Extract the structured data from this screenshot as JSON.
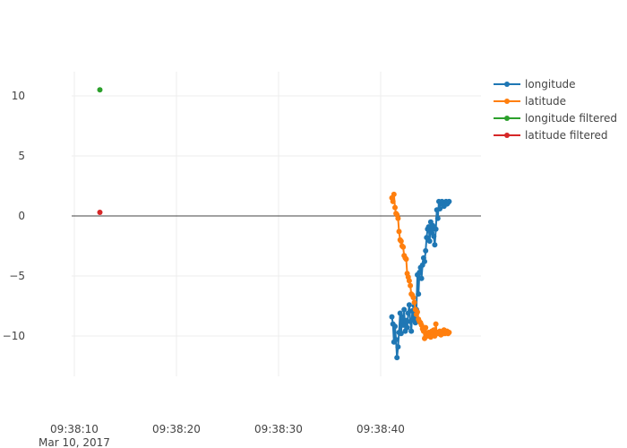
{
  "chart_data": {
    "type": "line",
    "title": "",
    "xlabel": "",
    "ylabel": "",
    "x_tick_labels": [
      "09:38:10",
      "09:38:20",
      "09:38:30",
      "09:38:40"
    ],
    "x_tick_values": [
      10,
      20,
      30,
      40
    ],
    "x_date_label": "Mar 10, 2017",
    "y_tick_labels": [
      "10",
      "5",
      "0",
      "−5",
      "−10"
    ],
    "y_tick_values": [
      10,
      5,
      0,
      -5,
      -10
    ],
    "xlim": [
      10,
      48
    ],
    "ylim": [
      -13.5,
      12.5
    ],
    "grid": true,
    "legend_position": "top-right",
    "series": [
      {
        "name": "longitude",
        "color": "#1f77b4",
        "x": [
          41.1,
          41.2,
          41.3,
          41.4,
          41.5,
          41.6,
          41.7,
          41.8,
          41.9,
          42.0,
          42.1,
          42.2,
          42.3,
          42.4,
          42.5,
          42.6,
          42.7,
          42.8,
          42.9,
          43.0,
          43.1,
          43.2,
          43.3,
          43.4,
          43.5,
          43.6,
          43.7,
          43.8,
          43.9,
          44.0,
          44.1,
          44.2,
          44.3,
          44.4,
          44.5,
          44.6,
          44.7,
          44.8,
          44.9,
          45.0,
          45.1,
          45.2,
          45.3,
          45.4,
          45.5,
          45.6,
          45.7,
          45.8,
          45.9,
          46.0,
          46.1,
          46.2,
          46.3,
          46.4,
          46.5,
          46.6,
          46.7
        ],
        "y": [
          -8.4,
          -9.0,
          -10.5,
          -9.2,
          -10.3,
          -11.8,
          -10.9,
          -9.7,
          -8.1,
          -9.8,
          -8.4,
          -9.1,
          -7.8,
          -9.6,
          -8.7,
          -9.3,
          -8.1,
          -7.4,
          -8.8,
          -9.6,
          -7.9,
          -8.6,
          -7.5,
          -8.9,
          -7.8,
          -4.9,
          -6.5,
          -4.7,
          -4.3,
          -5.2,
          -4.1,
          -3.5,
          -3.8,
          -2.9,
          -1.8,
          -1.1,
          -0.9,
          -2.1,
          -0.5,
          -1.4,
          -0.8,
          -1.7,
          -2.4,
          -1.1,
          0.5,
          -0.2,
          1.2,
          0.6,
          1.1,
          1.2,
          1.0,
          0.8,
          1.1,
          1.2,
          1.0,
          1.1,
          1.2
        ]
      },
      {
        "name": "latitude",
        "color": "#ff7f0e",
        "x": [
          41.1,
          41.2,
          41.3,
          41.4,
          41.5,
          41.6,
          41.7,
          41.8,
          41.9,
          42.0,
          42.1,
          42.2,
          42.3,
          42.4,
          42.5,
          42.6,
          42.7,
          42.8,
          42.9,
          43.0,
          43.1,
          43.2,
          43.3,
          43.4,
          43.5,
          43.6,
          43.7,
          43.8,
          43.9,
          44.0,
          44.1,
          44.2,
          44.3,
          44.4,
          44.5,
          44.6,
          44.7,
          44.8,
          44.9,
          45.0,
          45.1,
          45.2,
          45.3,
          45.4,
          45.5,
          45.6,
          45.7,
          45.8,
          45.9,
          46.0,
          46.1,
          46.2,
          46.3,
          46.4,
          46.5,
          46.6,
          46.7
        ],
        "y": [
          1.5,
          1.2,
          1.8,
          0.7,
          0.2,
          0.1,
          -0.2,
          -1.3,
          -2.0,
          -2.1,
          -2.5,
          -2.6,
          -3.3,
          -3.5,
          -3.6,
          -4.8,
          -5.1,
          -5.4,
          -5.8,
          -6.5,
          -6.6,
          -6.8,
          -7.2,
          -7.8,
          -8.2,
          -8.0,
          -8.6,
          -8.8,
          -8.9,
          -9.1,
          -9.4,
          -9.6,
          -10.2,
          -9.3,
          -9.8,
          -10.0,
          -9.7,
          -9.8,
          -10.1,
          -9.6,
          -9.9,
          -9.5,
          -10.0,
          -9.0,
          -9.8,
          -9.7,
          -9.8,
          -9.6,
          -9.9,
          -9.7,
          -9.8,
          -9.5,
          -9.8,
          -9.7,
          -9.6,
          -9.8,
          -9.7
        ]
      },
      {
        "name": "longitude filtered",
        "color": "#2ca02c",
        "x": [
          12.5
        ],
        "y": [
          10.5
        ]
      },
      {
        "name": "latitude filtered",
        "color": "#d62728",
        "x": [
          12.5
        ],
        "y": [
          0.3
        ]
      }
    ]
  }
}
